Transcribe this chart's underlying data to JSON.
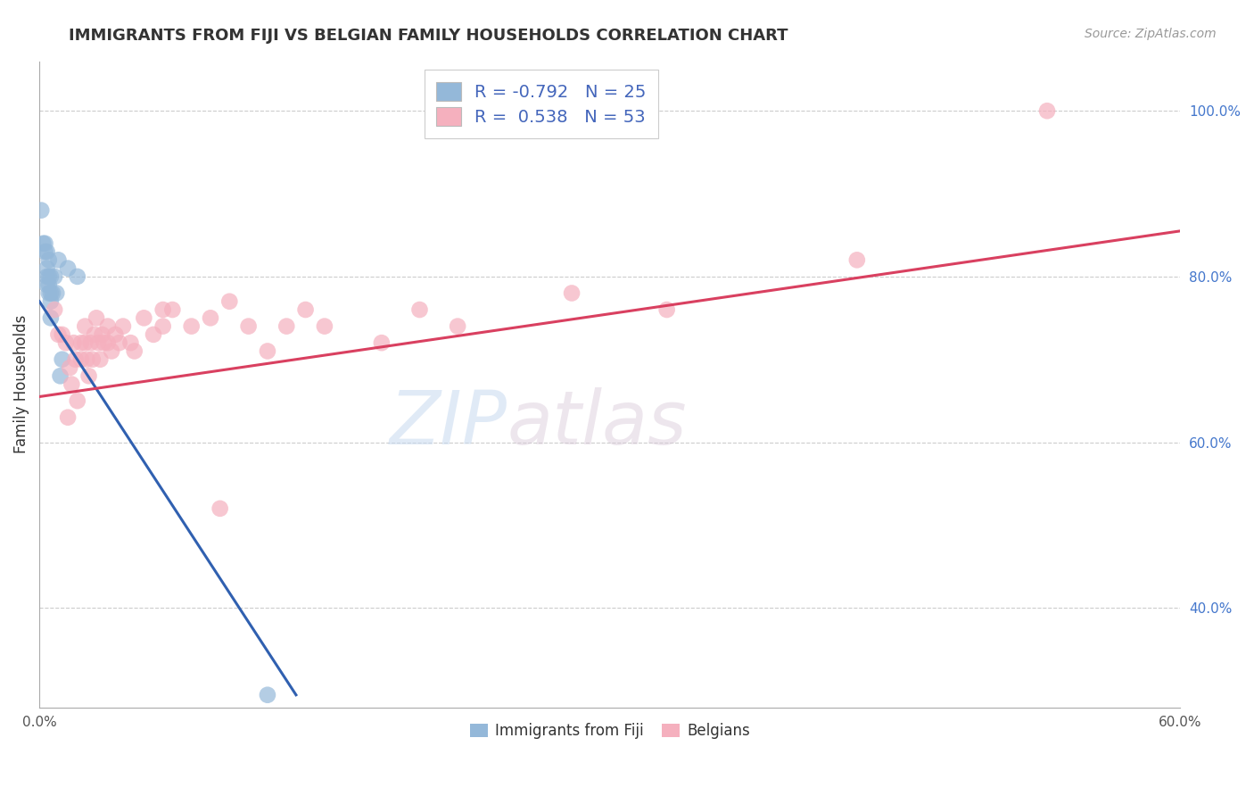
{
  "title": "IMMIGRANTS FROM FIJI VS BELGIAN FAMILY HOUSEHOLDS CORRELATION CHART",
  "source_text": "Source: ZipAtlas.com",
  "ylabel": "Family Households",
  "x_min": 0.0,
  "x_max": 0.6,
  "y_min": 0.28,
  "y_max": 1.06,
  "y_ticks": [
    0.4,
    0.6,
    0.8,
    1.0
  ],
  "y_tick_labels": [
    "40.0%",
    "60.0%",
    "80.0%",
    "100.0%"
  ],
  "x_ticks_shown": [
    0.0,
    0.6
  ],
  "x_tick_labels_shown": [
    "0.0%",
    "60.0%"
  ],
  "fiji_color": "#94b8d9",
  "fiji_color_line": "#3060b0",
  "belgian_color": "#f5b0be",
  "belgian_color_line": "#d94060",
  "fiji_R": -0.792,
  "fiji_N": 25,
  "belgian_R": 0.538,
  "belgian_N": 53,
  "fiji_points": [
    [
      0.001,
      0.88
    ],
    [
      0.002,
      0.84
    ],
    [
      0.003,
      0.84
    ],
    [
      0.003,
      0.83
    ],
    [
      0.004,
      0.83
    ],
    [
      0.004,
      0.81
    ],
    [
      0.004,
      0.8
    ],
    [
      0.004,
      0.79
    ],
    [
      0.005,
      0.82
    ],
    [
      0.005,
      0.8
    ],
    [
      0.005,
      0.79
    ],
    [
      0.005,
      0.78
    ],
    [
      0.006,
      0.8
    ],
    [
      0.006,
      0.78
    ],
    [
      0.006,
      0.77
    ],
    [
      0.006,
      0.75
    ],
    [
      0.007,
      0.78
    ],
    [
      0.008,
      0.8
    ],
    [
      0.009,
      0.78
    ],
    [
      0.01,
      0.82
    ],
    [
      0.011,
      0.68
    ],
    [
      0.012,
      0.7
    ],
    [
      0.015,
      0.81
    ],
    [
      0.02,
      0.8
    ],
    [
      0.12,
      0.295
    ]
  ],
  "belgian_points": [
    [
      0.008,
      0.76
    ],
    [
      0.01,
      0.73
    ],
    [
      0.012,
      0.73
    ],
    [
      0.014,
      0.72
    ],
    [
      0.015,
      0.63
    ],
    [
      0.016,
      0.69
    ],
    [
      0.017,
      0.67
    ],
    [
      0.018,
      0.72
    ],
    [
      0.019,
      0.7
    ],
    [
      0.02,
      0.65
    ],
    [
      0.022,
      0.72
    ],
    [
      0.022,
      0.7
    ],
    [
      0.024,
      0.74
    ],
    [
      0.024,
      0.72
    ],
    [
      0.025,
      0.7
    ],
    [
      0.026,
      0.68
    ],
    [
      0.027,
      0.72
    ],
    [
      0.028,
      0.7
    ],
    [
      0.029,
      0.73
    ],
    [
      0.03,
      0.75
    ],
    [
      0.031,
      0.72
    ],
    [
      0.032,
      0.7
    ],
    [
      0.033,
      0.73
    ],
    [
      0.034,
      0.72
    ],
    [
      0.036,
      0.74
    ],
    [
      0.036,
      0.72
    ],
    [
      0.038,
      0.71
    ],
    [
      0.04,
      0.73
    ],
    [
      0.042,
      0.72
    ],
    [
      0.044,
      0.74
    ],
    [
      0.048,
      0.72
    ],
    [
      0.05,
      0.71
    ],
    [
      0.055,
      0.75
    ],
    [
      0.06,
      0.73
    ],
    [
      0.065,
      0.76
    ],
    [
      0.065,
      0.74
    ],
    [
      0.07,
      0.76
    ],
    [
      0.08,
      0.74
    ],
    [
      0.09,
      0.75
    ],
    [
      0.095,
      0.52
    ],
    [
      0.1,
      0.77
    ],
    [
      0.11,
      0.74
    ],
    [
      0.12,
      0.71
    ],
    [
      0.13,
      0.74
    ],
    [
      0.14,
      0.76
    ],
    [
      0.15,
      0.74
    ],
    [
      0.18,
      0.72
    ],
    [
      0.2,
      0.76
    ],
    [
      0.22,
      0.74
    ],
    [
      0.28,
      0.78
    ],
    [
      0.33,
      0.76
    ],
    [
      0.43,
      0.82
    ],
    [
      0.53,
      1.0
    ]
  ],
  "fiji_line_x": [
    0.0,
    0.135
  ],
  "fiji_line_y": [
    0.77,
    0.295
  ],
  "belgian_line_x": [
    0.0,
    0.6
  ],
  "belgian_line_y": [
    0.655,
    0.855
  ],
  "watermark_zip": "ZIP",
  "watermark_atlas": "atlas",
  "background_color": "#ffffff",
  "grid_color": "#cccccc",
  "title_fontsize": 13,
  "legend1_label1": "R = -0.792   N = 25",
  "legend1_label2": "R =  0.538   N = 53",
  "bottom_legend_label1": "Immigrants from Fiji",
  "bottom_legend_label2": "Belgians"
}
